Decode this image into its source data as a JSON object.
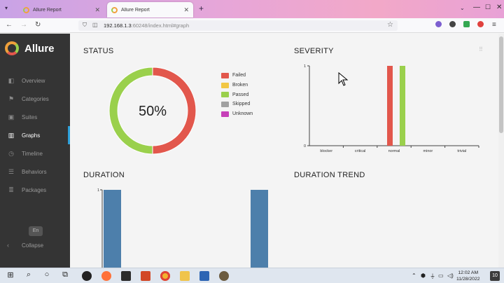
{
  "browser": {
    "tabs": [
      {
        "title": "Allure Report",
        "active": false
      },
      {
        "title": "Allure Report",
        "active": true
      }
    ],
    "url_host": "192.168.1.3",
    "url_rest": ":60248/index.html#graph"
  },
  "app": {
    "name": "Allure"
  },
  "sidebar": {
    "items": [
      {
        "label": "Overview",
        "icon": "overview-icon"
      },
      {
        "label": "Categories",
        "icon": "flag-icon"
      },
      {
        "label": "Suites",
        "icon": "briefcase-icon"
      },
      {
        "label": "Graphs",
        "icon": "bar-chart-icon"
      },
      {
        "label": "Timeline",
        "icon": "clock-icon"
      },
      {
        "label": "Behaviors",
        "icon": "list-icon"
      },
      {
        "label": "Packages",
        "icon": "packages-icon"
      }
    ],
    "active": "Graphs",
    "language": "En",
    "collapse_label": "Collapse"
  },
  "sections": {
    "status": "STATUS",
    "severity": "SEVERITY",
    "duration": "DURATION",
    "duration_trend": "DURATION TREND"
  },
  "status": {
    "center_label": "50%",
    "legend": [
      {
        "label": "Failed",
        "color": "#e2574c"
      },
      {
        "label": "Broken",
        "color": "#f2c744"
      },
      {
        "label": "Passed",
        "color": "#9ad04c"
      },
      {
        "label": "Skipped",
        "color": "#a0a0a0"
      },
      {
        "label": "Unknown",
        "color": "#c640b8"
      }
    ]
  },
  "chart_data": [
    {
      "type": "pie",
      "labels": [
        "Failed",
        "Passed"
      ],
      "values": [
        50,
        50
      ],
      "colors": [
        "#e2574c",
        "#9ad04c"
      ]
    },
    {
      "type": "bar",
      "categories": [
        "blocker",
        "critical",
        "normal",
        "minor",
        "trivial"
      ],
      "series": [
        {
          "name": "Failed",
          "color": "#e2574c",
          "values": [
            0,
            0,
            1,
            0,
            0
          ]
        },
        {
          "name": "Passed",
          "color": "#9ad04c",
          "values": [
            0,
            0,
            1,
            0,
            0
          ]
        }
      ],
      "ylim": [
        0,
        1
      ],
      "yticks": [
        "0",
        "1"
      ]
    },
    {
      "type": "bar",
      "series": [
        {
          "color": "#4d7fab",
          "values": [
            1,
            1
          ]
        }
      ],
      "yticks": [
        "1"
      ]
    }
  ],
  "taskbar": {
    "time": "12:02 AM",
    "date": "11/28/2022",
    "notifications": "10"
  }
}
